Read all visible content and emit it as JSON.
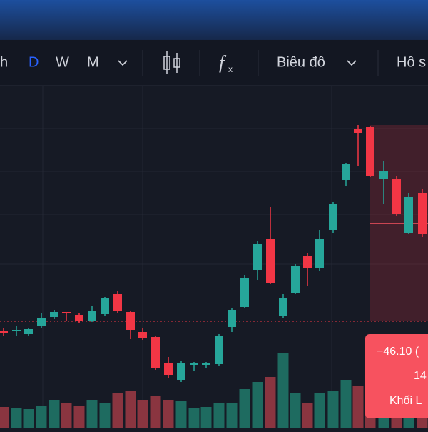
{
  "toolbar": {
    "intervals": [
      "h",
      "D",
      "W",
      "M"
    ],
    "chart_type": "Biêu đô",
    "more": "Hô s"
  },
  "tooltip": {
    "change": "−46.10 (",
    "value": "14",
    "volume_label": "Khối L"
  }
}
